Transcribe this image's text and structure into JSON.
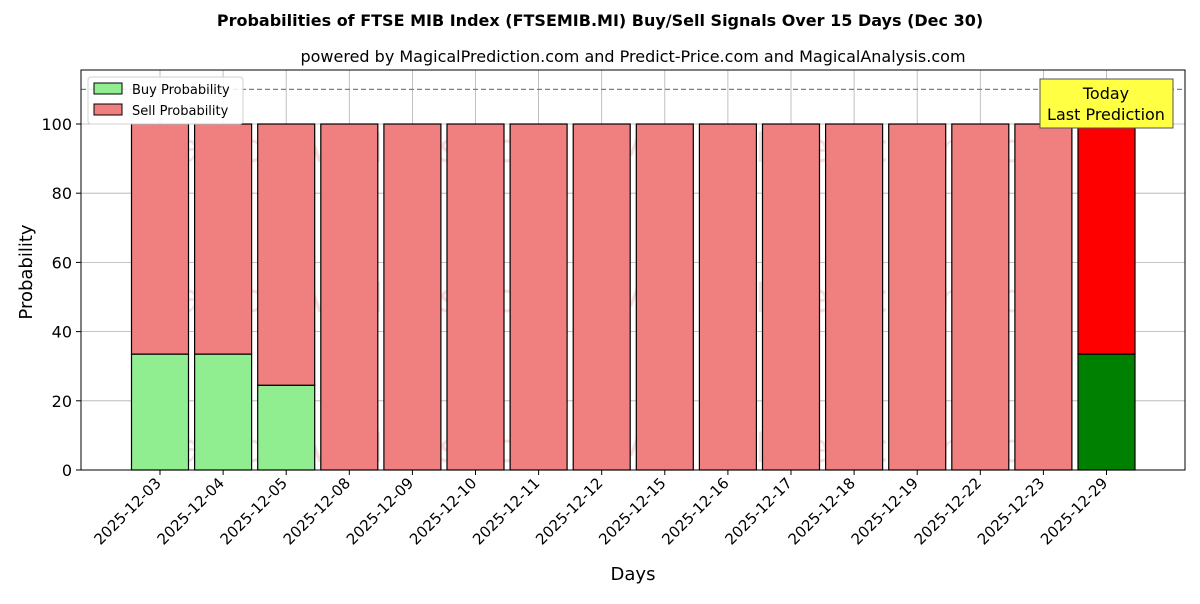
{
  "chart_data": {
    "type": "bar",
    "stacked": true,
    "title": "Probabilities of FTSE MIB Index (FTSEMIB.MI) Buy/Sell Signals Over 15 Days (Dec 30)",
    "subtitle": "powered by MagicalPrediction.com and Predict-Price.com and MagicalAnalysis.com",
    "xlabel": "Days",
    "ylabel": "Probability",
    "ylim": [
      0,
      115
    ],
    "yticks": [
      0,
      20,
      40,
      60,
      80,
      100
    ],
    "grid": true,
    "legend_position": "upper left",
    "reference_line": 110,
    "categories": [
      "2025-12-03",
      "2025-12-04",
      "2025-12-05",
      "2025-12-08",
      "2025-12-09",
      "2025-12-10",
      "2025-12-11",
      "2025-12-12",
      "2025-12-15",
      "2025-12-16",
      "2025-12-17",
      "2025-12-18",
      "2025-12-19",
      "2025-12-22",
      "2025-12-23",
      "2025-12-29"
    ],
    "series": [
      {
        "name": "Buy Probability",
        "color": "#90EE90",
        "values": [
          33.5,
          33.5,
          24.5,
          0,
          0,
          0,
          0,
          0,
          0,
          0,
          0,
          0,
          0,
          0,
          0,
          33.5
        ]
      },
      {
        "name": "Sell Probability",
        "color": "#F08080",
        "values": [
          66.5,
          66.5,
          75.5,
          100,
          100,
          100,
          100,
          100,
          100,
          100,
          100,
          100,
          100,
          100,
          100,
          66.5
        ]
      }
    ],
    "highlight": {
      "index": 15,
      "buy_color": "#008000",
      "sell_color": "#FF0000"
    },
    "annotation": {
      "line1": "Today",
      "line2": "Last Prediction",
      "bg": "#FFFF44"
    },
    "watermarks": [
      "MagicalAnalysis.com",
      "MagicalPrediction.com"
    ]
  }
}
